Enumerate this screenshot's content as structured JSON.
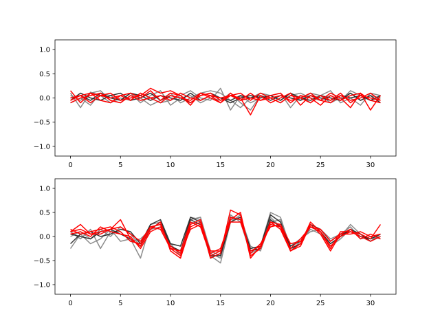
{
  "chart_data": [
    {
      "type": "line",
      "xlim": [
        -1.55,
        32.55
      ],
      "ylim": [
        -1.2,
        1.2
      ],
      "xticks": [
        0,
        5,
        10,
        15,
        20,
        25,
        30
      ],
      "yticks": [
        1.0,
        0.5,
        0.0,
        -0.5,
        -1.0
      ],
      "grid": false,
      "colors": {
        "ghost": "#7f7f7f",
        "dark": "#2a2a2a",
        "highlight": "#ff0000"
      },
      "series": [
        {
          "color": "ghost",
          "values": [
            0.1,
            -0.2,
            0.12,
            0.05,
            -0.1,
            0.0,
            -0.05,
            0.1,
            0.0,
            -0.1,
            -0.05,
            0.05,
            0.15,
            0.0,
            -0.05,
            0.2,
            -0.25,
            0.05,
            -0.1,
            0.0,
            0.05,
            0.1,
            -0.2,
            0.05,
            -0.1,
            0.05,
            0.15,
            -0.1,
            0.0,
            -0.15,
            0.1,
            0.05
          ]
        },
        {
          "color": "ghost",
          "values": [
            0.05,
            -0.05,
            0.1,
            0.15,
            -0.05,
            -0.1,
            0.05,
            0.0,
            -0.15,
            -0.05,
            0.1,
            -0.1,
            0.0,
            0.1,
            0.15,
            0.1,
            -0.05,
            -0.2,
            0.0,
            0.1,
            0.05,
            -0.05,
            0.1,
            -0.05,
            0.1,
            0.05,
            -0.1,
            0.0,
            0.1,
            -0.05,
            0.05,
            0.0
          ]
        },
        {
          "color": "ghost",
          "values": [
            -0.1,
            0.0,
            -0.15,
            0.1,
            0.05,
            -0.05,
            0.1,
            -0.1,
            0.05,
            0.15,
            -0.15,
            0.0,
            0.05,
            -0.1,
            0.0,
            -0.05,
            0.1,
            -0.1,
            -0.25,
            0.05,
            0.0,
            -0.1,
            0.05,
            0.1,
            0.0,
            -0.05,
            0.05,
            -0.05,
            0.15,
            0.05,
            -0.05,
            0.0
          ]
        },
        {
          "color": "dark",
          "values": [
            0.0,
            0.05,
            -0.05,
            0.1,
            0.0,
            -0.05,
            0.1,
            0.05,
            -0.05,
            0.05,
            0.0,
            -0.05,
            0.1,
            -0.05,
            0.05,
            0.0,
            -0.05,
            0.05,
            0.0,
            0.05,
            -0.05,
            0.05,
            0.0,
            -0.05,
            0.05,
            0.0,
            -0.05,
            0.05,
            0.0,
            0.05,
            -0.05,
            0.05
          ]
        },
        {
          "color": "dark",
          "values": [
            -0.05,
            0.1,
            0.0,
            -0.05,
            0.05,
            0.1,
            -0.05,
            0.0,
            0.1,
            -0.05,
            0.05,
            0.0,
            -0.1,
            0.05,
            0.1,
            0.0,
            -0.1,
            0.0,
            0.05,
            0.0,
            0.05,
            -0.05,
            0.1,
            0.0,
            -0.05,
            0.05,
            0.0,
            -0.05,
            0.1,
            -0.05,
            0.05,
            -0.1
          ]
        },
        {
          "color": "highlight",
          "values": [
            0.15,
            -0.1,
            0.1,
            -0.05,
            -0.1,
            0.05,
            0.1,
            0.0,
            0.15,
            -0.05,
            0.1,
            0.05,
            -0.15,
            0.1,
            0.0,
            -0.1,
            0.05,
            0.0,
            -0.35,
            0.05,
            -0.1,
            0.0,
            0.1,
            -0.15,
            0.05,
            -0.05,
            0.1,
            0.0,
            -0.2,
            0.1,
            -0.25,
            0.05
          ]
        },
        {
          "color": "highlight",
          "values": [
            -0.05,
            0.05,
            -0.1,
            0.05,
            0.1,
            -0.05,
            0.0,
            0.05,
            0.2,
            0.1,
            0.15,
            0.05,
            -0.1,
            0.05,
            0.1,
            -0.05,
            0.05,
            0.1,
            -0.05,
            0.1,
            0.0,
            -0.1,
            0.05,
            0.0,
            -0.1,
            0.05,
            -0.05,
            0.1,
            -0.1,
            0.05,
            0.0,
            -0.05
          ]
        },
        {
          "color": "highlight",
          "values": [
            -0.1,
            0.0,
            0.05,
            0.1,
            -0.05,
            -0.1,
            0.05,
            -0.05,
            0.0,
            -0.1,
            0.05,
            0.0,
            -0.05,
            0.1,
            0.05,
            -0.1,
            0.1,
            -0.05,
            0.0,
            -0.05,
            0.05,
            0.1,
            -0.1,
            0.05,
            0.0,
            -0.15,
            0.05,
            -0.05,
            0.05,
            0.1,
            -0.05,
            -0.1
          ]
        },
        {
          "color": "highlight",
          "values": [
            0.0,
            0.05,
            0.1,
            0.05,
            0.0,
            0.05,
            -0.05,
            0.1,
            0.0,
            0.05,
            -0.05,
            0.1,
            0.0,
            -0.05,
            0.05,
            0.0,
            0.05,
            -0.05,
            0.1,
            -0.05,
            0.0,
            0.05,
            -0.05,
            0.0,
            0.1,
            -0.05,
            -0.1,
            0.05,
            -0.05,
            0.0,
            0.1,
            -0.05
          ]
        }
      ]
    },
    {
      "type": "line",
      "xlim": [
        -1.55,
        32.55
      ],
      "ylim": [
        -1.2,
        1.2
      ],
      "xticks": [
        0,
        5,
        10,
        15,
        20,
        25,
        30
      ],
      "yticks": [
        1.0,
        0.5,
        0.0,
        -0.5,
        -1.0
      ],
      "grid": false,
      "colors": {
        "ghost": "#7f7f7f",
        "dark": "#2a2a2a",
        "highlight": "#ff0000"
      },
      "series": [
        {
          "color": "ghost",
          "values": [
            -0.25,
            0.05,
            -0.15,
            -0.05,
            0.15,
            -0.1,
            -0.05,
            -0.45,
            0.25,
            0.3,
            -0.2,
            -0.35,
            0.4,
            0.35,
            -0.4,
            -0.55,
            0.3,
            0.45,
            -0.3,
            -0.2,
            0.5,
            0.4,
            -0.25,
            -0.15,
            0.2,
            0.1,
            -0.15,
            0.0,
            0.25,
            0.05,
            -0.05,
            0.0
          ]
        },
        {
          "color": "ghost",
          "values": [
            0.0,
            0.1,
            -0.05,
            0.15,
            0.0,
            0.2,
            0.05,
            -0.2,
            0.2,
            0.25,
            -0.25,
            -0.3,
            0.35,
            0.4,
            -0.3,
            -0.4,
            0.45,
            0.3,
            -0.35,
            -0.25,
            0.4,
            0.2,
            -0.3,
            -0.1,
            0.15,
            0.05,
            -0.2,
            -0.05,
            0.15,
            0.0,
            -0.1,
            0.05
          ]
        },
        {
          "color": "ghost",
          "values": [
            0.1,
            -0.05,
            0.15,
            -0.25,
            0.1,
            0.1,
            -0.1,
            -0.05,
            0.15,
            0.2,
            -0.15,
            -0.4,
            0.3,
            0.25,
            -0.35,
            -0.45,
            0.35,
            0.4,
            -0.2,
            -0.3,
            0.3,
            0.35,
            -0.2,
            -0.05,
            0.1,
            0.15,
            -0.05,
            0.05,
            0.2,
            -0.05,
            0.0,
            -0.05
          ]
        },
        {
          "color": "dark",
          "values": [
            -0.15,
            0.05,
            0.1,
            0.0,
            0.05,
            0.15,
            0.1,
            -0.15,
            0.25,
            0.35,
            -0.15,
            -0.2,
            0.4,
            0.3,
            -0.45,
            -0.35,
            0.4,
            0.35,
            -0.25,
            -0.2,
            0.45,
            0.3,
            -0.25,
            -0.15,
            0.25,
            0.15,
            -0.1,
            0.05,
            0.1,
            0.0,
            -0.05,
            0.05
          ]
        },
        {
          "color": "dark",
          "values": [
            0.05,
            0.0,
            -0.05,
            0.1,
            0.15,
            0.05,
            -0.05,
            -0.2,
            0.15,
            0.3,
            -0.2,
            -0.3,
            0.35,
            0.25,
            -0.4,
            -0.4,
            0.3,
            0.4,
            -0.3,
            -0.25,
            0.35,
            0.2,
            -0.2,
            -0.1,
            0.2,
            0.1,
            -0.15,
            0.0,
            0.15,
            0.05,
            -0.1,
            0.0
          ]
        },
        {
          "color": "highlight",
          "values": [
            0.1,
            0.25,
            0.05,
            0.1,
            0.15,
            0.35,
            -0.05,
            -0.2,
            0.15,
            0.3,
            -0.3,
            -0.45,
            0.2,
            0.3,
            -0.45,
            -0.35,
            0.55,
            0.45,
            -0.45,
            -0.2,
            0.3,
            0.15,
            -0.3,
            -0.15,
            0.3,
            0.1,
            -0.25,
            0.1,
            0.1,
            0.05,
            -0.05,
            0.25
          ]
        },
        {
          "color": "highlight",
          "values": [
            0.15,
            0.05,
            0.1,
            0.15,
            0.2,
            0.1,
            -0.1,
            -0.15,
            0.2,
            0.25,
            -0.25,
            -0.4,
            0.25,
            0.35,
            -0.35,
            -0.25,
            0.35,
            0.5,
            -0.4,
            -0.25,
            0.25,
            0.2,
            -0.25,
            -0.05,
            0.2,
            0.15,
            -0.1,
            0.05,
            0.05,
            0.1,
            0.0,
            0.05
          ]
        },
        {
          "color": "highlight",
          "values": [
            0.05,
            0.1,
            0.0,
            0.2,
            0.1,
            0.05,
            0.0,
            -0.25,
            0.1,
            0.2,
            -0.2,
            -0.35,
            0.15,
            0.25,
            -0.3,
            -0.3,
            0.4,
            0.35,
            -0.35,
            -0.15,
            0.2,
            0.25,
            -0.3,
            -0.2,
            0.25,
            0.05,
            -0.3,
            0.05,
            0.15,
            -0.05,
            0.05,
            -0.05
          ]
        },
        {
          "color": "highlight",
          "values": [
            0.1,
            0.15,
            0.05,
            0.05,
            0.15,
            0.2,
            0.05,
            -0.1,
            0.2,
            0.15,
            -0.25,
            -0.3,
            0.3,
            0.2,
            -0.4,
            -0.3,
            0.3,
            0.3,
            -0.3,
            -0.2,
            0.3,
            0.25,
            -0.15,
            -0.1,
            0.2,
            0.1,
            -0.2,
            0.0,
            0.1,
            0.0,
            -0.1,
            0.0
          ]
        }
      ]
    }
  ]
}
